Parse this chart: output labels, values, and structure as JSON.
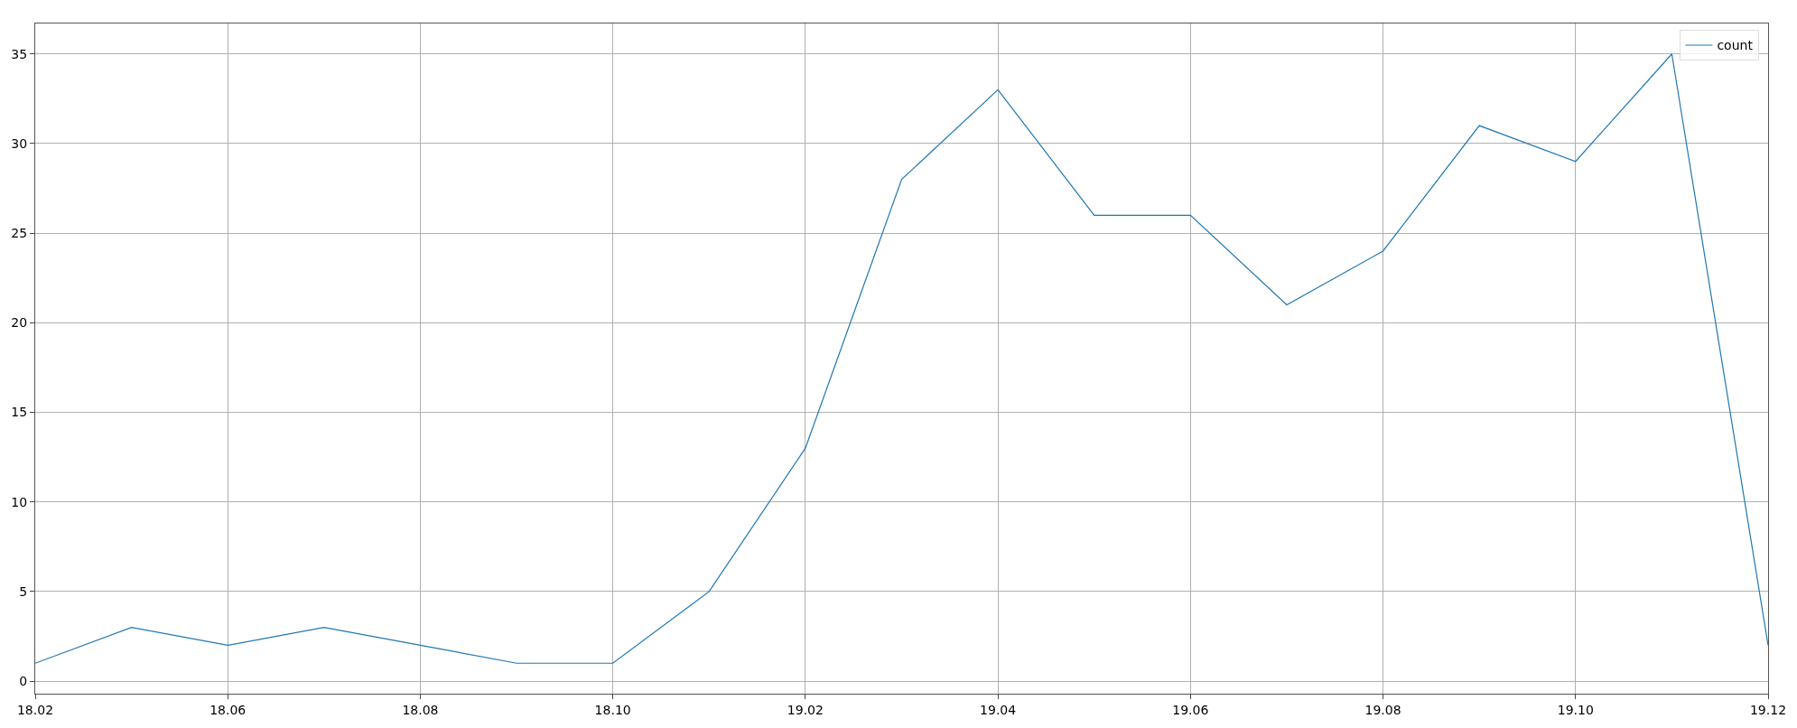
{
  "chart_data": {
    "type": "line",
    "categories": [
      "18.02",
      null,
      "18.06",
      null,
      "18.08",
      null,
      "18.10",
      null,
      "19.02",
      null,
      "19.04",
      null,
      "19.06",
      null,
      "19.08",
      null,
      "19.10",
      null,
      "19.12"
    ],
    "series": [
      {
        "name": "count",
        "color": "#1f77b4",
        "values": [
          1,
          3,
          2,
          3,
          2,
          1,
          1,
          5,
          13,
          28,
          33,
          26,
          26,
          21,
          24,
          31,
          29,
          35,
          2
        ]
      }
    ],
    "ylim": [
      -0.7,
      36.7
    ],
    "yticks": [
      0,
      5,
      10,
      15,
      20,
      25,
      30,
      35
    ],
    "grid": true,
    "legend": "top right",
    "marker": "none",
    "line_style": "solid"
  }
}
